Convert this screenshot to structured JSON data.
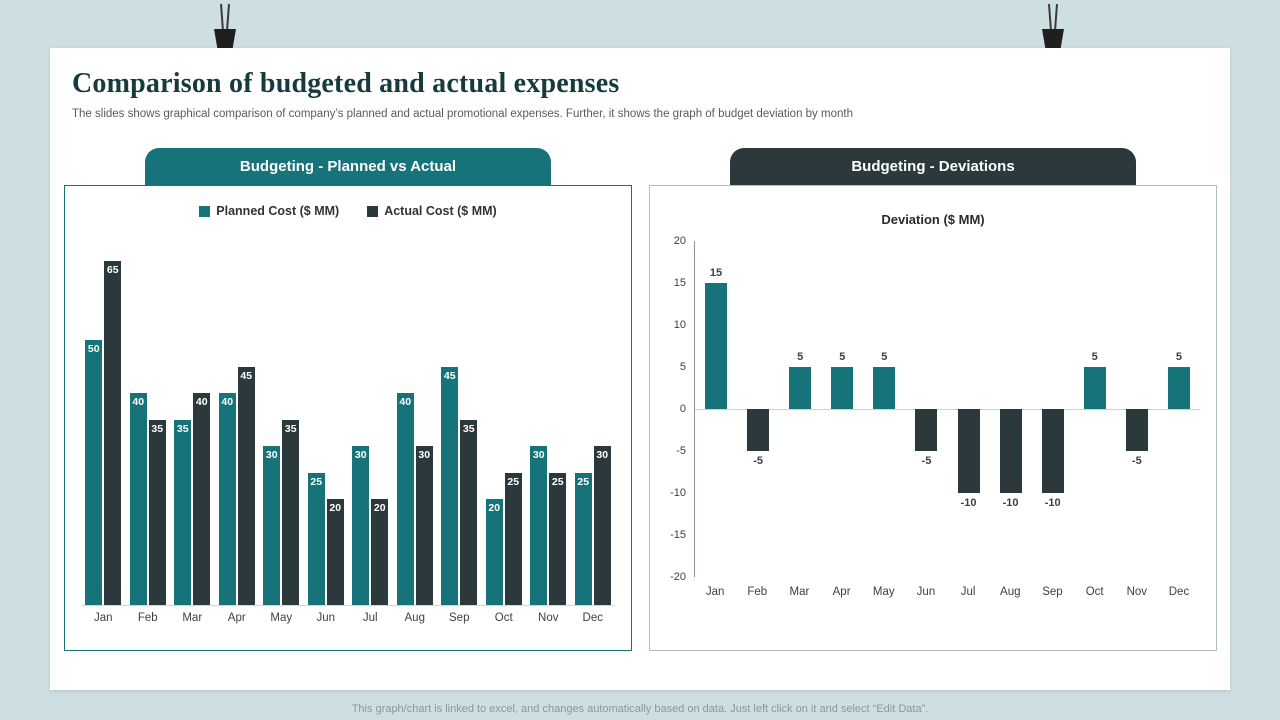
{
  "slide": {
    "title": "Comparison of budgeted and actual expenses",
    "subtitle": "The slides shows graphical comparison of company’s planned and actual promotional expenses. Further, it shows the graph of budget deviation by month",
    "footer": "This graph/chart is linked to excel, and changes automatically based on data. Just left click on it and select “Edit Data”."
  },
  "left_panel": {
    "header": "Budgeting - Planned vs Actual"
  },
  "right_panel": {
    "header": "Budgeting - Deviations"
  },
  "colors": {
    "teal": "#16737a",
    "dark_slate": "#2b393d",
    "background": "#cedfe1"
  },
  "icons": {
    "binder_clip_left": "binder-clip-icon",
    "binder_clip_right": "binder-clip-icon"
  },
  "chart_data": [
    {
      "type": "bar",
      "title": "Budgeting - Planned vs Actual",
      "categories": [
        "Jan",
        "Feb",
        "Mar",
        "Apr",
        "May",
        "Jun",
        "Jul",
        "Aug",
        "Sep",
        "Oct",
        "Nov",
        "Dec"
      ],
      "series": [
        {
          "name": "Planned Cost ($ MM)",
          "color": "#16737a",
          "values": [
            50,
            40,
            35,
            40,
            30,
            25,
            30,
            40,
            45,
            20,
            30,
            25
          ]
        },
        {
          "name": "Actual Cost ($ MM)",
          "color": "#2b393d",
          "values": [
            65,
            35,
            40,
            45,
            35,
            20,
            20,
            30,
            35,
            25,
            25,
            30
          ]
        }
      ],
      "ylim": [
        0,
        70
      ],
      "legend_position": "top",
      "grid": false,
      "value_labels": "inside-top"
    },
    {
      "type": "bar",
      "title": "Deviation ($ MM)",
      "categories": [
        "Jan",
        "Feb",
        "Mar",
        "Apr",
        "May",
        "Jun",
        "Jul",
        "Aug",
        "Sep",
        "Oct",
        "Nov",
        "Dec"
      ],
      "values": [
        15,
        -5,
        5,
        5,
        5,
        -5,
        -10,
        -10,
        -10,
        5,
        -5,
        5
      ],
      "positive_color": "#16737a",
      "negative_color": "#2b393d",
      "ylim": [
        -20,
        20
      ],
      "yticks": [
        20,
        15,
        10,
        5,
        0,
        -5,
        -10,
        -15,
        -20
      ],
      "grid": false,
      "value_labels": "outside-end"
    }
  ]
}
